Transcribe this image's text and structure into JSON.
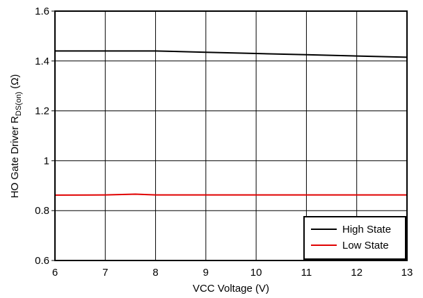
{
  "chart_data": {
    "type": "line",
    "xlabel": "VCC Voltage (V)",
    "ylabel_main": "HO Gate Driver R",
    "ylabel_sub": "DS(on)",
    "ylabel_unit": " (Ω)",
    "xlim": [
      6,
      13
    ],
    "ylim": [
      0.6,
      1.6
    ],
    "xticks": [
      "6",
      "7",
      "8",
      "9",
      "10",
      "11",
      "12",
      "13"
    ],
    "yticks": [
      "0.6",
      "0.8",
      "1",
      "1.2",
      "1.4",
      "1.6"
    ],
    "grid": true,
    "legend_position": "bottom-right",
    "series": [
      {
        "name": "High State",
        "color": "#000000",
        "x": [
          6,
          7,
          8,
          9,
          10,
          11,
          12,
          13
        ],
        "y": [
          1.44,
          1.44,
          1.44,
          1.435,
          1.43,
          1.425,
          1.42,
          1.415
        ]
      },
      {
        "name": "Low State",
        "color": "#e00000",
        "x": [
          6,
          7,
          7.6,
          8,
          9,
          10,
          11,
          12,
          13
        ],
        "y": [
          0.862,
          0.863,
          0.866,
          0.863,
          0.863,
          0.863,
          0.863,
          0.863,
          0.863
        ]
      }
    ]
  }
}
